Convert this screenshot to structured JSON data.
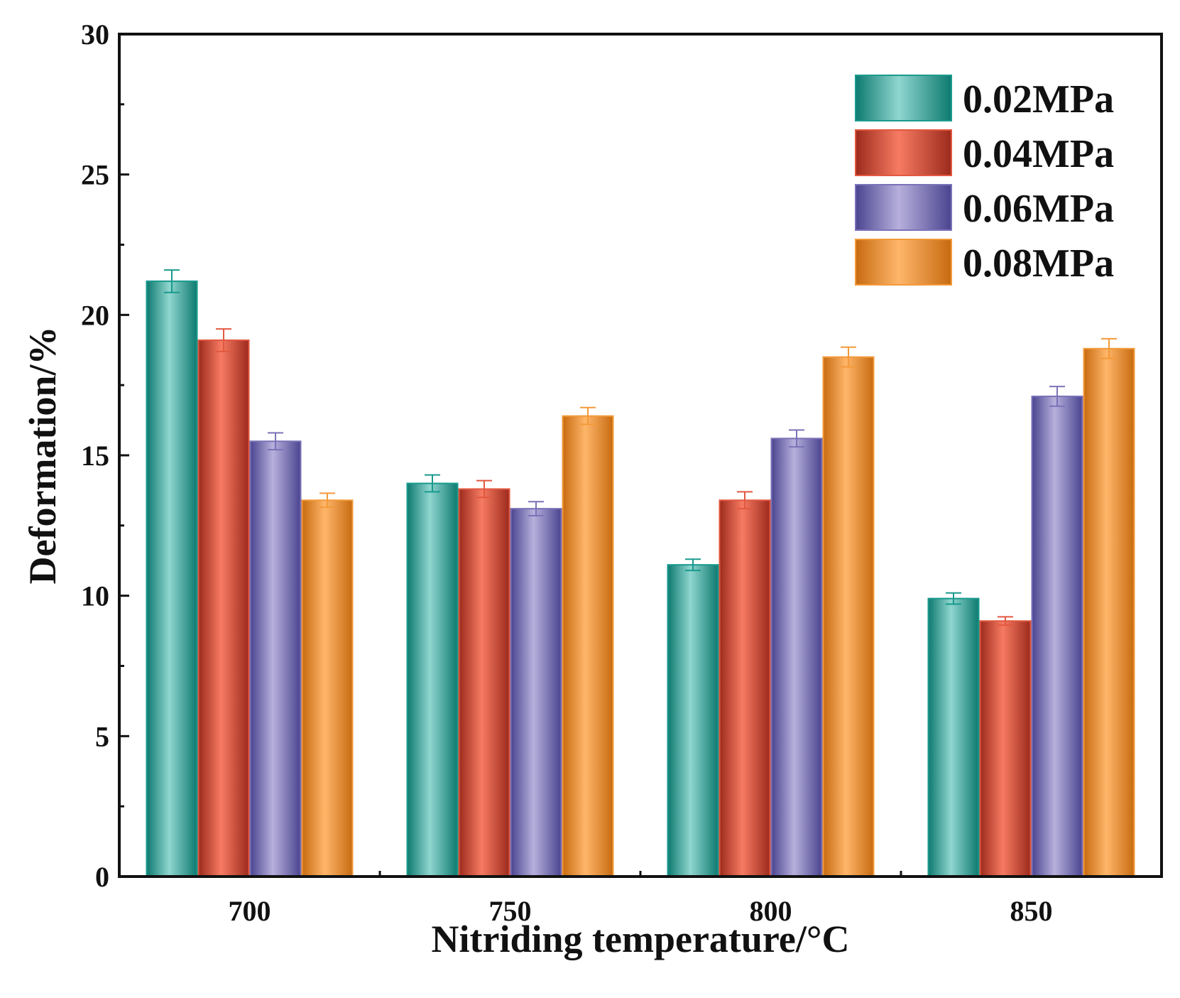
{
  "colors": {
    "series": [
      "#1a9a8e",
      "#e25840",
      "#7b73b8",
      "#f39a3a"
    ],
    "series_light": [
      "#8fd6cf",
      "#f77b62",
      "#b7b0dc",
      "#ffb66a"
    ],
    "series_dark": [
      "#0d7a70",
      "#9c2a1c",
      "#4a4490",
      "#c76a10"
    ],
    "axis": "#111111"
  },
  "chart_data": {
    "type": "bar",
    "title": "",
    "xlabel": "Nitriding temperature/°C",
    "ylabel": "Deformation/%",
    "ylim": [
      0,
      30
    ],
    "yticks": [
      "0",
      "5",
      "10",
      "15",
      "20",
      "25",
      "30"
    ],
    "categories": [
      "700",
      "750",
      "800",
      "850"
    ],
    "legend_position": "top-right",
    "series": [
      {
        "name": "0.02MPa",
        "values": [
          21.2,
          14.0,
          11.1,
          9.9
        ],
        "errors": [
          0.4,
          0.3,
          0.2,
          0.2
        ]
      },
      {
        "name": "0.04MPa",
        "values": [
          19.1,
          13.8,
          13.4,
          9.1
        ],
        "errors": [
          0.4,
          0.3,
          0.3,
          0.15
        ]
      },
      {
        "name": "0.06MPa",
        "values": [
          15.5,
          13.1,
          15.6,
          17.1
        ],
        "errors": [
          0.3,
          0.25,
          0.3,
          0.35
        ]
      },
      {
        "name": "0.08MPa",
        "values": [
          13.4,
          16.4,
          18.5,
          18.8
        ],
        "errors": [
          0.25,
          0.3,
          0.35,
          0.35
        ]
      }
    ]
  }
}
